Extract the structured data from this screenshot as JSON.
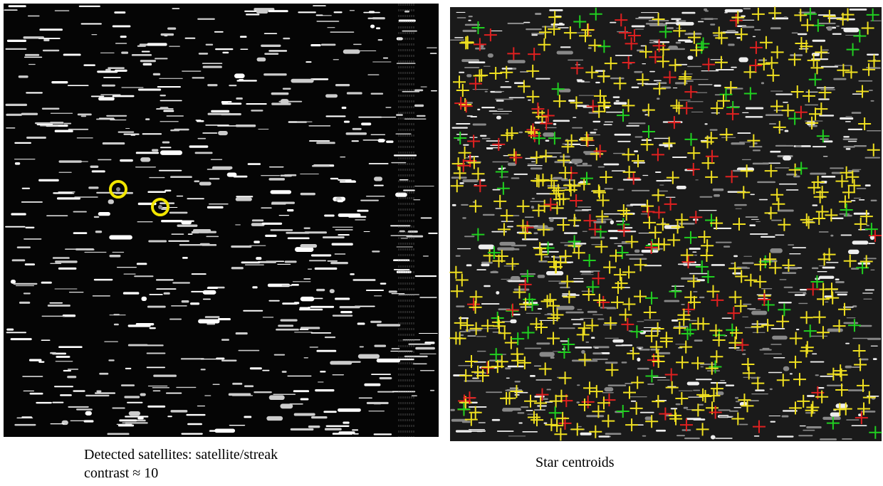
{
  "figure": {
    "left": {
      "caption_lines": [
        "Detected satellites: satellite/streak",
        "contrast ≈ 10"
      ]
    },
    "right": {
      "caption_lines": [
        "Star centroids"
      ]
    }
  }
}
